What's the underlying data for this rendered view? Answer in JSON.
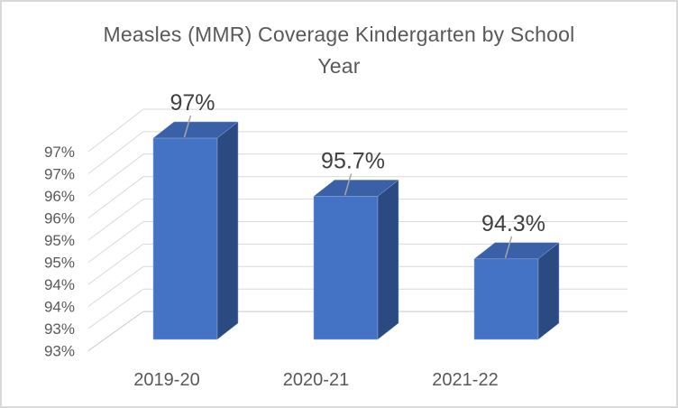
{
  "frame": {
    "background_color": "#ffffff",
    "border_color": "#d9d9d9"
  },
  "chart_data": {
    "type": "bar",
    "variant": "3d-column",
    "title": "Measles (MMR) Coverage Kindergarten by School Year",
    "title_lines": [
      "Measles (MMR) Coverage Kindergarten by School",
      "Year"
    ],
    "xlabel": "",
    "ylabel": "",
    "categories": [
      "2019-20",
      "2020-21",
      "2021-22"
    ],
    "series": [
      {
        "name": "Measles (MMR) Coverage",
        "values": [
          97,
          95.7,
          94.3
        ],
        "data_labels": [
          "97%",
          "95.7%",
          "94.3%"
        ]
      }
    ],
    "y_axis": {
      "min": 92.5,
      "max": 97,
      "step": 0.5,
      "tick_labels_top_to_bottom": [
        "97%",
        "97%",
        "96%",
        "96%",
        "95%",
        "95%",
        "94%",
        "94%",
        "93%",
        "93%"
      ]
    },
    "grid": true,
    "legend": false,
    "colors": {
      "bar_front": "#4472c4",
      "bar_top": "#3a60a8",
      "bar_side": "#2b4a82",
      "bar_edge": "#93a9d6",
      "gridline": "#d9d9d9",
      "baseline": "#c9c9c9",
      "leader_line": "#a6a6a6",
      "title_text": "#595959",
      "axis_text": "#595959",
      "data_label_text": "#404040"
    }
  }
}
